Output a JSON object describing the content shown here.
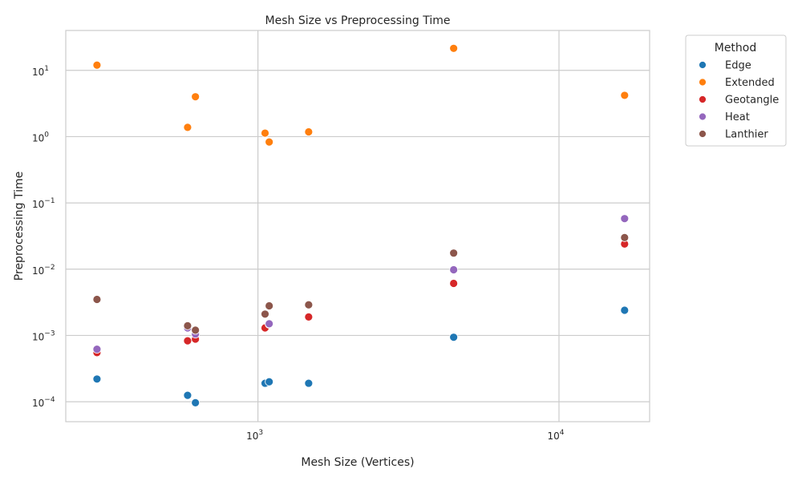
{
  "chart_data": {
    "type": "scatter",
    "title": "Mesh Size vs Preprocessing Time",
    "xlabel": "Mesh Size (Vertices)",
    "ylabel": "Preprocessing Time",
    "xscale": "log",
    "yscale": "log",
    "xlim": [
      230,
      20000
    ],
    "ylim": [
      5e-05,
      40
    ],
    "x_ticks": [
      {
        "value": 1000,
        "base": "10",
        "exp": "3"
      },
      {
        "value": 10000,
        "base": "10",
        "exp": "4"
      }
    ],
    "y_ticks": [
      {
        "value": 0.0001,
        "base": "10",
        "exp": "−4"
      },
      {
        "value": 0.001,
        "base": "10",
        "exp": "−3"
      },
      {
        "value": 0.01,
        "base": "10",
        "exp": "−2"
      },
      {
        "value": 0.1,
        "base": "10",
        "exp": "−1"
      },
      {
        "value": 1,
        "base": "10",
        "exp": "0"
      },
      {
        "value": 10,
        "base": "10",
        "exp": "1"
      }
    ],
    "grid": true,
    "legend_title": "Method",
    "legend_position": "outside-top-right",
    "series": [
      {
        "name": "Edge",
        "color": "#1f77b4",
        "points": [
          [
            292,
            0.00022
          ],
          [
            584,
            0.000125
          ],
          [
            620,
            9.65e-05
          ],
          [
            1056,
            0.00019
          ],
          [
            1090,
            0.0002
          ],
          [
            1474,
            0.00019
          ],
          [
            4468,
            0.00094
          ],
          [
            16516,
            0.0024
          ]
        ]
      },
      {
        "name": "Extended",
        "color": "#ff7f0e",
        "points": [
          [
            292,
            12.0
          ],
          [
            584,
            1.38
          ],
          [
            620,
            4.0
          ],
          [
            1056,
            1.13
          ],
          [
            1090,
            0.83
          ],
          [
            1474,
            1.18
          ],
          [
            4468,
            21.5
          ],
          [
            16516,
            4.2
          ]
        ]
      },
      {
        "name": "Geotangle",
        "color": "#d62728",
        "points": [
          [
            292,
            0.00055
          ],
          [
            584,
            0.00083
          ],
          [
            620,
            0.00088
          ],
          [
            1056,
            0.0013
          ],
          [
            1090,
            0.00148
          ],
          [
            1474,
            0.0019
          ],
          [
            4468,
            0.0061
          ],
          [
            16516,
            0.024
          ]
        ]
      },
      {
        "name": "Heat",
        "color": "#9467bd",
        "points": [
          [
            292,
            0.00062
          ],
          [
            584,
            0.0013
          ],
          [
            620,
            0.00105
          ],
          [
            1056,
            0.0021
          ],
          [
            1090,
            0.0015
          ],
          [
            1474,
            0.0029
          ],
          [
            4468,
            0.0098
          ],
          [
            16516,
            0.058
          ]
        ]
      },
      {
        "name": "Lanthier",
        "color": "#8c564b",
        "points": [
          [
            292,
            0.0035
          ],
          [
            584,
            0.0014
          ],
          [
            620,
            0.0012
          ],
          [
            1056,
            0.0021
          ],
          [
            1090,
            0.0028
          ],
          [
            1474,
            0.0029
          ],
          [
            4468,
            0.0175
          ],
          [
            16516,
            0.03
          ]
        ]
      }
    ]
  }
}
